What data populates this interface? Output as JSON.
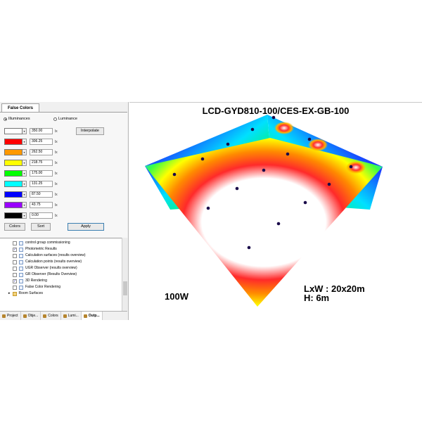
{
  "panel": {
    "tab_title": "False Colors",
    "radio_illuminances": "Illuminances",
    "radio_luminance": "Luminance",
    "interpolate_button": "Interpolate",
    "unit": "lx",
    "rows": [
      {
        "color": "#ffffff",
        "value": "350.00"
      },
      {
        "color": "#ff0000",
        "value": "306.25"
      },
      {
        "color": "#ff9900",
        "value": "262.50"
      },
      {
        "color": "#ffff00",
        "value": "218.75"
      },
      {
        "color": "#00ff00",
        "value": "175.00"
      },
      {
        "color": "#00ffff",
        "value": "131.25"
      },
      {
        "color": "#0000ff",
        "value": "87.50"
      },
      {
        "color": "#9900ff",
        "value": "43.75"
      },
      {
        "color": "#000000",
        "value": "0.00"
      }
    ],
    "colors_button": "Colors",
    "sort_button": "Sort",
    "apply_button": "Apply"
  },
  "tree": {
    "items": [
      {
        "label": "control group commissioning",
        "checked": false
      },
      {
        "label": "Photometric Results",
        "checked": true
      },
      {
        "label": "Calculation surfaces (results overview)",
        "checked": false
      },
      {
        "label": "Calculation points (results overview)",
        "checked": false
      },
      {
        "label": "UGR Observer (results overview)",
        "checked": false
      },
      {
        "label": "GR Observer (Results Overview)",
        "checked": false
      },
      {
        "label": "3D Rendering",
        "checked": true
      },
      {
        "label": "False Color Rendering",
        "checked": false
      }
    ],
    "folder_label": "Room Surfaces"
  },
  "bottom_tabs": [
    "Project",
    "Obje...",
    "Colors",
    "Lumi...",
    "Outp..."
  ],
  "view": {
    "title": "LCD-GYD810-100/CES-EX-GB-100",
    "wattage": "100W",
    "dimensions": "LxW : 20x20m",
    "height": "H: 6m"
  }
}
